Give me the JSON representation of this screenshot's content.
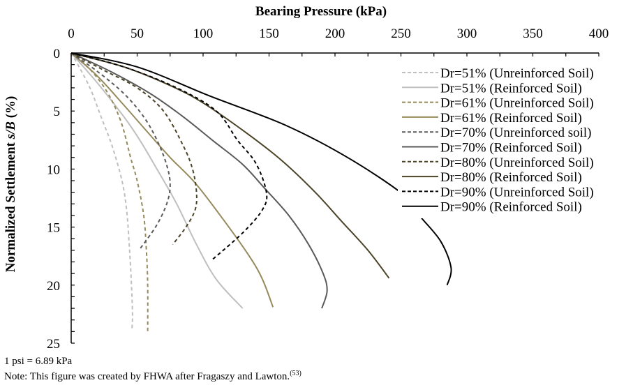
{
  "chart_data": {
    "type": "line",
    "title": "Bearing Pressure (kPa)",
    "xlabel": "Bearing Pressure (kPa)",
    "ylabel": "Normalized Settlement s/B (%)",
    "ylabel_parts": [
      "Normalized Settlement ",
      "s/B",
      " (%)"
    ],
    "x_axis_position": "top",
    "y_axis_inverted": true,
    "xlim": [
      0,
      400
    ],
    "ylim": [
      0,
      25
    ],
    "xticks": [
      0,
      50,
      100,
      150,
      200,
      250,
      300,
      350,
      400
    ],
    "yticks": [
      0,
      5,
      10,
      15,
      20,
      25
    ],
    "grid": false,
    "legend_position": "top-right",
    "series": [
      {
        "name": "Dr=51% (Unreinforced Soil)",
        "color": "#bfbfbf",
        "dashed": true,
        "points": [
          [
            0,
            0
          ],
          [
            7,
            1.4
          ],
          [
            15,
            3.2
          ],
          [
            23,
            5.6
          ],
          [
            31,
            8
          ],
          [
            38.5,
            11
          ],
          [
            42,
            13.5
          ],
          [
            44,
            16.5
          ],
          [
            45.5,
            19.5
          ],
          [
            46.5,
            22.5
          ],
          [
            46,
            23.9
          ]
        ]
      },
      {
        "name": "Dr=51% (Reinforced Soil)",
        "color": "#bfbfbf",
        "dashed": false,
        "points": [
          [
            0,
            0
          ],
          [
            20,
            2.6
          ],
          [
            40,
            5.5
          ],
          [
            52,
            7.5
          ],
          [
            65,
            10
          ],
          [
            80,
            13
          ],
          [
            95,
            16.5
          ],
          [
            110,
            19.5
          ],
          [
            130,
            22
          ]
        ]
      },
      {
        "name": "Dr=61% (Unreinforced Soil)",
        "color": "#958a5c",
        "dashed": true,
        "points": [
          [
            0,
            0
          ],
          [
            15,
            1.5
          ],
          [
            28,
            3.5
          ],
          [
            38,
            6
          ],
          [
            45,
            9
          ],
          [
            50,
            11
          ],
          [
            55,
            14
          ],
          [
            57,
            17
          ],
          [
            58,
            20
          ],
          [
            58,
            24
          ]
        ]
      },
      {
        "name": "Dr=61% (Reinforced Soil)",
        "color": "#958a5c",
        "dashed": false,
        "points": [
          [
            0,
            0
          ],
          [
            20,
            2
          ],
          [
            40,
            4.5
          ],
          [
            57,
            6.7
          ],
          [
            75,
            9
          ],
          [
            94,
            11.2
          ],
          [
            115,
            14.3
          ],
          [
            135,
            17.5
          ],
          [
            145,
            19.5
          ],
          [
            153,
            21.9
          ]
        ]
      },
      {
        "name": "Dr=70% (Unreinforced soil)",
        "color": "#5a5a5a",
        "dashed": true,
        "points": [
          [
            0,
            0
          ],
          [
            20,
            1.6
          ],
          [
            40,
            3.5
          ],
          [
            55,
            5.5
          ],
          [
            65,
            7.5
          ],
          [
            72,
            9.5
          ],
          [
            75,
            11.2
          ],
          [
            73,
            12.8
          ],
          [
            65,
            14.8
          ],
          [
            52,
            16.9
          ]
        ]
      },
      {
        "name": "Dr=70% (Reinforced Soil)",
        "color": "#5a5a5a",
        "dashed": false,
        "points": [
          [
            0,
            0
          ],
          [
            30,
            1.6
          ],
          [
            60,
            3.5
          ],
          [
            85,
            5.5
          ],
          [
            108,
            7.6
          ],
          [
            130,
            9.6
          ],
          [
            147,
            11.7
          ],
          [
            165,
            14
          ],
          [
            180,
            16.5
          ],
          [
            191,
            19
          ],
          [
            194,
            20.5
          ],
          [
            190,
            22
          ]
        ]
      },
      {
        "name": "Dr=80% (Unreinforced Soil)",
        "color": "#4a4328",
        "dashed": true,
        "points": [
          [
            0,
            0
          ],
          [
            25,
            1.5
          ],
          [
            50,
            3
          ],
          [
            70,
            5
          ],
          [
            85,
            8
          ],
          [
            92,
            10
          ],
          [
            95,
            12
          ],
          [
            94,
            13.5
          ],
          [
            87,
            15
          ],
          [
            77,
            16.5
          ]
        ]
      },
      {
        "name": "Dr=80% (Reinforced Soil)",
        "color": "#4a4328",
        "dashed": false,
        "points": [
          [
            0,
            0
          ],
          [
            40,
            1.2
          ],
          [
            75,
            2.8
          ],
          [
            100,
            4.3
          ],
          [
            133,
            6.9
          ],
          [
            160,
            9.3
          ],
          [
            185,
            12
          ],
          [
            205,
            14.5
          ],
          [
            225,
            17
          ],
          [
            241,
            19.4
          ]
        ]
      },
      {
        "name": "Dr=90% (Unreinforced Soil)",
        "color": "#000000",
        "dashed": true,
        "points": [
          [
            0,
            0
          ],
          [
            40,
            1.2
          ],
          [
            80,
            3
          ],
          [
            110,
            5
          ],
          [
            126,
            7.5
          ],
          [
            140,
            9.5
          ],
          [
            148,
            12
          ],
          [
            145,
            13.5
          ],
          [
            130,
            15.5
          ],
          [
            106,
            17.9
          ]
        ]
      },
      {
        "name": "Dr=90% (Reinforced Soil)",
        "color": "#000000",
        "dashed": false,
        "points": [
          [
            0,
            0
          ],
          [
            50,
            1.2
          ],
          [
            105,
            3.7
          ],
          [
            163,
            6.25
          ],
          [
            211,
            9.1
          ],
          [
            253,
            12.3
          ],
          [
            264,
            14
          ],
          [
            280,
            16.2
          ],
          [
            288,
            18.5
          ],
          [
            285,
            20
          ]
        ]
      }
    ]
  },
  "notes": {
    "conversion": "1 psi = 6.89 kPa",
    "source": "Note: This figure was created by FHWA after Fragaszy and Lawton.",
    "source_ref": "(53)"
  }
}
